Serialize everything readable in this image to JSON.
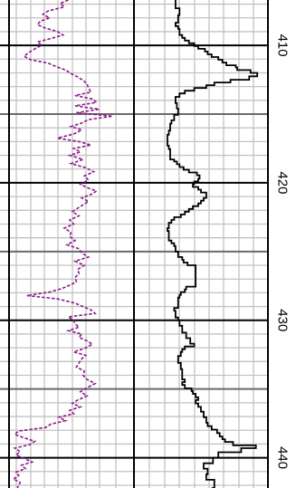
{
  "chart_data": {
    "type": "line",
    "orientation": "vertical-depth-log",
    "depth_range": [
      406.7,
      442.2
    ],
    "depth_ticks": [
      {
        "depth": 410,
        "label": "410"
      },
      {
        "depth": 420,
        "label": "420"
      },
      {
        "depth": 430,
        "label": "430"
      },
      {
        "depth": 440,
        "label": "440"
      }
    ],
    "grid": true,
    "series": [
      {
        "key": "dashed-curve",
        "color": "#8a1a8a",
        "style": "dashed",
        "track": "left",
        "x_range": [
          0,
          10
        ],
        "points": [
          [
            406.7,
            5.1
          ],
          [
            406.95,
            4.5
          ],
          [
            407.2,
            4.8
          ],
          [
            407.5,
            3.6
          ],
          [
            407.75,
            3.2
          ],
          [
            408.0,
            3.7
          ],
          [
            408.25,
            3.0
          ],
          [
            408.5,
            2.8
          ],
          [
            408.75,
            3.4
          ],
          [
            409.0,
            4.3
          ],
          [
            409.25,
            4.7
          ],
          [
            409.5,
            3.8
          ],
          [
            409.75,
            2.8
          ],
          [
            410.0,
            3.1
          ],
          [
            410.25,
            2.6
          ],
          [
            410.55,
            2.1
          ],
          [
            410.8,
            1.8
          ],
          [
            411.05,
            2.3
          ],
          [
            411.3,
            3.6
          ],
          [
            411.55,
            4.2
          ],
          [
            411.8,
            4.9
          ],
          [
            412.05,
            5.3
          ],
          [
            412.3,
            5.8
          ],
          [
            412.55,
            6.2
          ],
          [
            412.8,
            6.5
          ],
          [
            413.1,
            6.6
          ],
          [
            413.4,
            6.8
          ],
          [
            413.65,
            5.6
          ],
          [
            413.9,
            6.9
          ],
          [
            414.15,
            7.2
          ],
          [
            414.4,
            5.6
          ],
          [
            414.65,
            7.4
          ],
          [
            414.9,
            5.7
          ],
          [
            415.15,
            8.4
          ],
          [
            415.4,
            6.6
          ],
          [
            415.65,
            6.1
          ],
          [
            415.9,
            5.3
          ],
          [
            416.15,
            6.1
          ],
          [
            416.45,
            5.5
          ],
          [
            416.75,
            4.3
          ],
          [
            417.0,
            5.9
          ],
          [
            417.25,
            6.8
          ],
          [
            417.5,
            5.5
          ],
          [
            417.75,
            6.0
          ],
          [
            418.0,
            5.2
          ],
          [
            418.3,
            6.2
          ],
          [
            418.6,
            5.3
          ],
          [
            418.9,
            6.4
          ],
          [
            419.2,
            7.0
          ],
          [
            419.5,
            6.3
          ],
          [
            419.8,
            6.6
          ],
          [
            420.1,
            6.0
          ],
          [
            420.35,
            6.5
          ],
          [
            420.6,
            7.2
          ],
          [
            420.85,
            6.8
          ],
          [
            421.1,
            6.1
          ],
          [
            421.35,
            6.6
          ],
          [
            421.6,
            6.2
          ],
          [
            421.85,
            5.8
          ],
          [
            422.1,
            5.4
          ],
          [
            422.4,
            5.9
          ],
          [
            422.7,
            5.2
          ],
          [
            423.0,
            5.5
          ],
          [
            423.3,
            4.8
          ],
          [
            423.6,
            5.3
          ],
          [
            423.9,
            5.2
          ],
          [
            424.2,
            5.6
          ],
          [
            424.5,
            5.0
          ],
          [
            424.8,
            5.9
          ],
          [
            425.1,
            6.1
          ],
          [
            425.4,
            6.6
          ],
          [
            425.7,
            5.6
          ],
          [
            426.0,
            6.3
          ],
          [
            426.3,
            5.8
          ],
          [
            426.6,
            5.9
          ],
          [
            426.9,
            5.6
          ],
          [
            427.2,
            5.7
          ],
          [
            427.45,
            5.2
          ],
          [
            427.7,
            4.6
          ],
          [
            427.95,
            3.7
          ],
          [
            428.2,
            2.0
          ],
          [
            428.45,
            4.3
          ],
          [
            428.75,
            5.6
          ],
          [
            429.0,
            6.2
          ],
          [
            429.25,
            6.8
          ],
          [
            429.5,
            7.1
          ],
          [
            429.75,
            5.1
          ],
          [
            430.0,
            5.5
          ],
          [
            430.25,
            5.6
          ],
          [
            430.5,
            5.9
          ],
          [
            430.75,
            5.1
          ],
          [
            431.0,
            6.1
          ],
          [
            431.25,
            5.9
          ],
          [
            431.5,
            6.5
          ],
          [
            431.75,
            6.9
          ],
          [
            432.05,
            6.3
          ],
          [
            432.3,
            5.5
          ],
          [
            432.55,
            6.4
          ],
          [
            432.8,
            6.1
          ],
          [
            433.1,
            5.9
          ],
          [
            433.4,
            5.7
          ],
          [
            433.7,
            6.3
          ],
          [
            434.0,
            6.2
          ],
          [
            434.3,
            6.5
          ],
          [
            434.6,
            7.1
          ],
          [
            434.9,
            6.5
          ],
          [
            435.2,
            6.0
          ],
          [
            435.5,
            6.5
          ],
          [
            435.8,
            5.8
          ],
          [
            436.05,
            5.4
          ],
          [
            436.3,
            6.0
          ],
          [
            436.55,
            5.2
          ],
          [
            436.8,
            5.5
          ],
          [
            437.05,
            4.4
          ],
          [
            437.3,
            4.9
          ],
          [
            437.55,
            3.8
          ],
          [
            437.8,
            3.4
          ],
          [
            438.05,
            1.4
          ],
          [
            438.3,
            1.1
          ],
          [
            438.55,
            1.8
          ],
          [
            438.8,
            2.6
          ],
          [
            439.05,
            2.2
          ],
          [
            439.3,
            1.1
          ],
          [
            439.55,
            1.5
          ],
          [
            439.8,
            1.2
          ],
          [
            440.05,
            1.8
          ],
          [
            440.3,
            2.4
          ],
          [
            440.55,
            1.6
          ],
          [
            440.8,
            1.9
          ],
          [
            441.05,
            1.2
          ],
          [
            441.3,
            1.4
          ],
          [
            441.55,
            1.0
          ],
          [
            441.8,
            1.5
          ],
          [
            442.2,
            1.3
          ]
        ]
      },
      {
        "key": "stepped-curve",
        "color": "#000000",
        "style": "stepped",
        "track": "right",
        "x_range": [
          0,
          10
        ],
        "points": [
          [
            406.7,
            3.1
          ],
          [
            406.9,
            3.1
          ],
          [
            407.3,
            3.4
          ],
          [
            407.8,
            3.3
          ],
          [
            408.35,
            3.1
          ],
          [
            408.6,
            3.3
          ],
          [
            408.8,
            3.4
          ],
          [
            409.25,
            3.6
          ],
          [
            409.45,
            3.8
          ],
          [
            409.65,
            4.1
          ],
          [
            409.85,
            4.5
          ],
          [
            410.05,
            4.8
          ],
          [
            410.25,
            5.3
          ],
          [
            410.45,
            5.5
          ],
          [
            410.65,
            5.8
          ],
          [
            410.85,
            6.3
          ],
          [
            411.05,
            6.6
          ],
          [
            411.25,
            6.9
          ],
          [
            411.45,
            7.6
          ],
          [
            411.6,
            7.7
          ],
          [
            411.8,
            8.7
          ],
          [
            412.0,
            9.2
          ],
          [
            412.25,
            8.6
          ],
          [
            412.5,
            7.2
          ],
          [
            412.7,
            6.0
          ],
          [
            412.9,
            5.4
          ],
          [
            413.1,
            4.5
          ],
          [
            413.3,
            3.8
          ],
          [
            413.5,
            3.4
          ],
          [
            413.75,
            3.1
          ],
          [
            414.2,
            3.2
          ],
          [
            414.6,
            3.3
          ],
          [
            415.05,
            3.0
          ],
          [
            415.45,
            2.8
          ],
          [
            415.7,
            2.7
          ],
          [
            416.2,
            2.6
          ],
          [
            416.5,
            2.5
          ],
          [
            417.05,
            2.5
          ],
          [
            417.3,
            2.6
          ],
          [
            417.55,
            2.7
          ],
          [
            418.3,
            3.0
          ],
          [
            418.45,
            3.2
          ],
          [
            418.65,
            3.4
          ],
          [
            418.85,
            3.7
          ],
          [
            419.05,
            4.1
          ],
          [
            419.25,
            4.7
          ],
          [
            419.45,
            4.9
          ],
          [
            419.7,
            4.8
          ],
          [
            419.9,
            4.5
          ],
          [
            420.1,
            4.4
          ],
          [
            420.3,
            4.8
          ],
          [
            420.5,
            5.0
          ],
          [
            420.7,
            5.4
          ],
          [
            420.9,
            5.4
          ],
          [
            421.1,
            5.2
          ],
          [
            421.3,
            5.0
          ],
          [
            421.5,
            4.8
          ],
          [
            421.7,
            4.4
          ],
          [
            421.9,
            4.1
          ],
          [
            422.1,
            3.8
          ],
          [
            422.3,
            3.5
          ],
          [
            422.5,
            3.0
          ],
          [
            422.7,
            2.8
          ],
          [
            422.9,
            2.6
          ],
          [
            423.3,
            2.5
          ],
          [
            423.5,
            2.6
          ],
          [
            424.2,
            2.8
          ],
          [
            424.4,
            3.0
          ],
          [
            424.6,
            3.1
          ],
          [
            424.8,
            3.1
          ],
          [
            425.0,
            3.3
          ],
          [
            425.4,
            3.6
          ],
          [
            425.6,
            3.7
          ],
          [
            425.8,
            4.0
          ],
          [
            426.0,
            4.6
          ],
          [
            427.55,
            3.9
          ],
          [
            427.75,
            3.8
          ],
          [
            427.95,
            3.5
          ],
          [
            428.15,
            3.4
          ],
          [
            428.35,
            3.3
          ],
          [
            429.1,
            3.0
          ],
          [
            429.3,
            3.1
          ],
          [
            429.8,
            3.3
          ],
          [
            430.0,
            3.4
          ],
          [
            430.4,
            3.6
          ],
          [
            430.9,
            3.9
          ],
          [
            431.3,
            4.2
          ],
          [
            431.7,
            4.5
          ],
          [
            431.9,
            3.8
          ],
          [
            432.1,
            3.6
          ],
          [
            432.3,
            3.5
          ],
          [
            432.6,
            3.3
          ],
          [
            433.1,
            3.5
          ],
          [
            433.55,
            3.6
          ],
          [
            434.3,
            3.8
          ],
          [
            434.5,
            3.6
          ],
          [
            434.7,
            3.8
          ],
          [
            434.95,
            4.3
          ],
          [
            435.15,
            4.4
          ],
          [
            435.35,
            4.6
          ],
          [
            435.6,
            4.8
          ],
          [
            435.8,
            4.6
          ],
          [
            436.05,
            4.8
          ],
          [
            436.3,
            5.0
          ],
          [
            436.65,
            5.2
          ],
          [
            437.05,
            5.4
          ],
          [
            437.45,
            5.5
          ],
          [
            437.7,
            5.8
          ],
          [
            437.95,
            6.2
          ],
          [
            438.2,
            6.4
          ],
          [
            438.45,
            6.6
          ],
          [
            438.65,
            6.8
          ],
          [
            438.85,
            7.4
          ],
          [
            439.1,
            9.1
          ],
          [
            439.3,
            8.0
          ],
          [
            439.6,
            6.3
          ],
          [
            440.0,
            5.9
          ],
          [
            440.4,
            5.2
          ],
          [
            440.8,
            5.5
          ],
          [
            441.2,
            5.4
          ],
          [
            441.6,
            6.0
          ],
          [
            442.2,
            5.8
          ]
        ]
      }
    ]
  }
}
